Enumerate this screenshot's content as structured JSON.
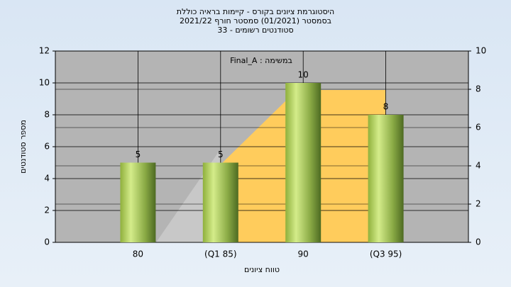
{
  "chart_data": {
    "type": "bar",
    "title": "היסטוגרמת ציונים בקורס - קיימות בראיה כוללת",
    "subtitle": [
      "בסמסטר  (01/2021)  סמסטר חורף 2021/22",
      "סטודנטים רשומים - 33"
    ],
    "annotation": "Final_A : במשימה",
    "x_label": "טווח ציונים",
    "y_label": "מספר סטודנטים",
    "categories": [
      "80",
      "(Q1 85)",
      "90",
      "(Q3 95)"
    ],
    "values": [
      5,
      5,
      10,
      8
    ],
    "ylim": [
      0,
      12
    ],
    "yticks": [
      0,
      2,
      4,
      6,
      8,
      10,
      12
    ],
    "y2lim": [
      0,
      10
    ],
    "y2ticks": [
      0,
      2,
      4,
      6,
      8,
      10
    ],
    "grid": true
  }
}
